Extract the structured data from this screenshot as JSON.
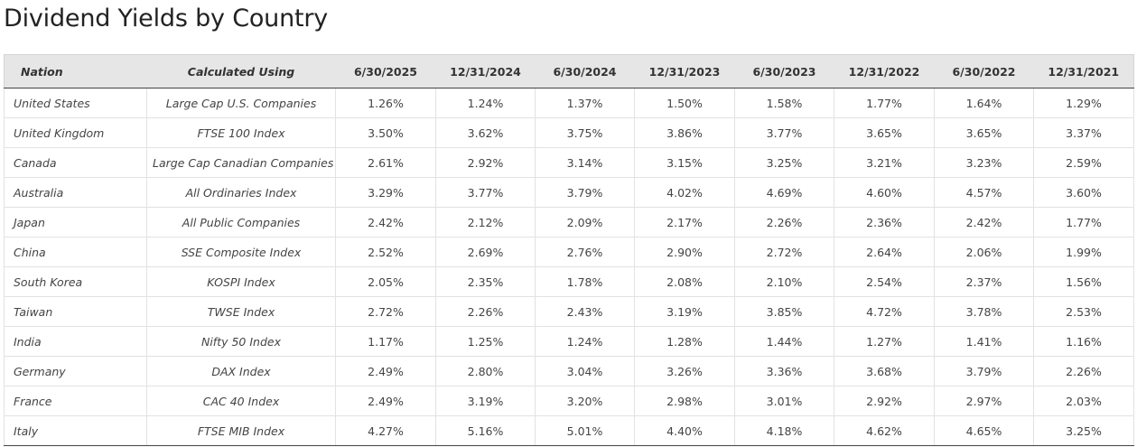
{
  "title": "Dividend Yields by Country",
  "table": {
    "headers": [
      "Nation",
      "Calculated Using",
      "6/30/2025",
      "12/31/2024",
      "6/30/2024",
      "12/31/2023",
      "6/30/2023",
      "12/31/2022",
      "6/30/2022",
      "12/31/2021"
    ],
    "rows": [
      {
        "nation": "United States",
        "method": "Large Cap U.S. Companies",
        "values": [
          "1.26%",
          "1.24%",
          "1.37%",
          "1.50%",
          "1.58%",
          "1.77%",
          "1.64%",
          "1.29%"
        ]
      },
      {
        "nation": "United Kingdom",
        "method": "FTSE 100 Index",
        "values": [
          "3.50%",
          "3.62%",
          "3.75%",
          "3.86%",
          "3.77%",
          "3.65%",
          "3.65%",
          "3.37%"
        ]
      },
      {
        "nation": "Canada",
        "method": "Large Cap Canadian Companies",
        "values": [
          "2.61%",
          "2.92%",
          "3.14%",
          "3.15%",
          "3.25%",
          "3.21%",
          "3.23%",
          "2.59%"
        ]
      },
      {
        "nation": "Australia",
        "method": "All Ordinaries Index",
        "values": [
          "3.29%",
          "3.77%",
          "3.79%",
          "4.02%",
          "4.69%",
          "4.60%",
          "4.57%",
          "3.60%"
        ]
      },
      {
        "nation": "Japan",
        "method": "All Public Companies",
        "values": [
          "2.42%",
          "2.12%",
          "2.09%",
          "2.17%",
          "2.26%",
          "2.36%",
          "2.42%",
          "1.77%"
        ]
      },
      {
        "nation": "China",
        "method": "SSE Composite Index",
        "values": [
          "2.52%",
          "2.69%",
          "2.76%",
          "2.90%",
          "2.72%",
          "2.64%",
          "2.06%",
          "1.99%"
        ]
      },
      {
        "nation": "South Korea",
        "method": "KOSPI Index",
        "values": [
          "2.05%",
          "2.35%",
          "1.78%",
          "2.08%",
          "2.10%",
          "2.54%",
          "2.37%",
          "1.56%"
        ]
      },
      {
        "nation": "Taiwan",
        "method": "TWSE Index",
        "values": [
          "2.72%",
          "2.26%",
          "2.43%",
          "3.19%",
          "3.85%",
          "4.72%",
          "3.78%",
          "2.53%"
        ]
      },
      {
        "nation": "India",
        "method": "Nifty 50 Index",
        "values": [
          "1.17%",
          "1.25%",
          "1.24%",
          "1.28%",
          "1.44%",
          "1.27%",
          "1.41%",
          "1.16%"
        ]
      },
      {
        "nation": "Germany",
        "method": "DAX Index",
        "values": [
          "2.49%",
          "2.80%",
          "3.04%",
          "3.26%",
          "3.36%",
          "3.68%",
          "3.79%",
          "2.26%"
        ]
      },
      {
        "nation": "France",
        "method": "CAC 40 Index",
        "values": [
          "2.49%",
          "3.19%",
          "3.20%",
          "2.98%",
          "3.01%",
          "2.92%",
          "2.97%",
          "2.03%"
        ]
      },
      {
        "nation": "Italy",
        "method": "FTSE MIB Index",
        "values": [
          "4.27%",
          "5.16%",
          "5.01%",
          "4.40%",
          "4.18%",
          "4.62%",
          "4.65%",
          "3.25%"
        ]
      }
    ]
  }
}
